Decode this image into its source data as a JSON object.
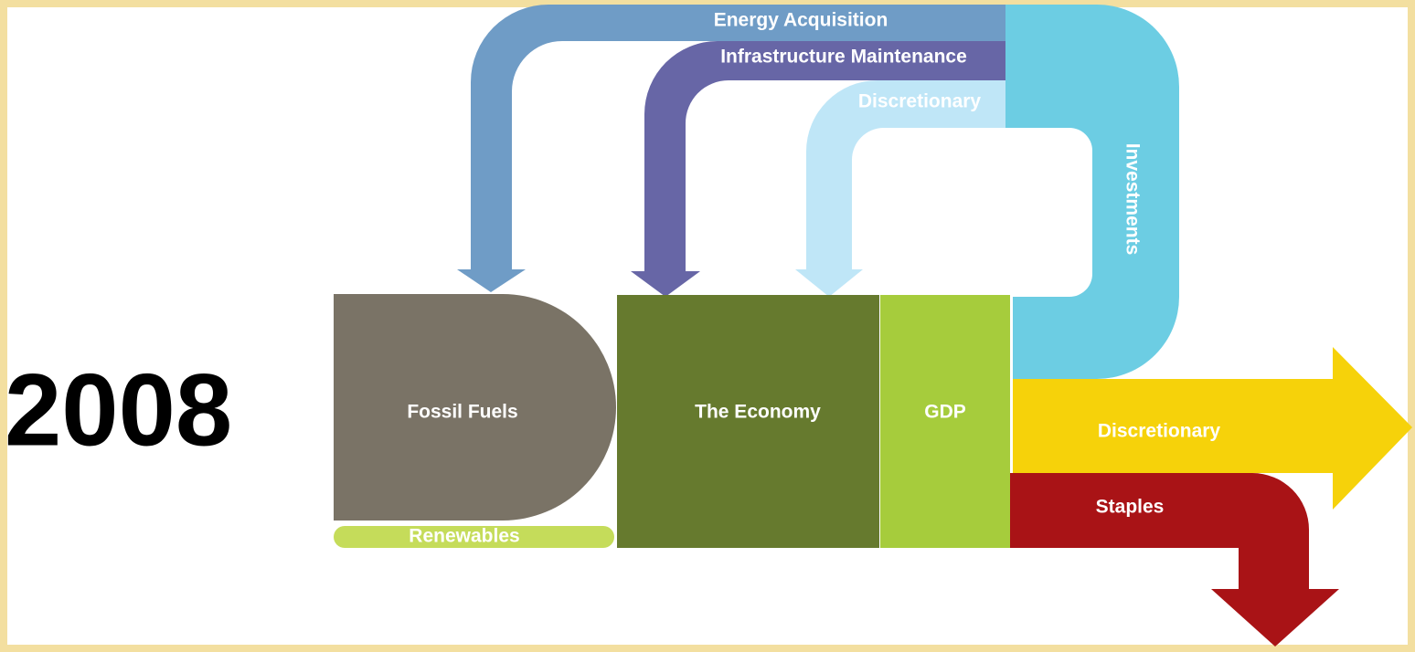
{
  "year": "2008",
  "nodes": [
    {
      "label": "Fossil Fuels"
    },
    {
      "label": "Renewables"
    },
    {
      "label": "The Economy"
    },
    {
      "label": "GDP"
    }
  ],
  "flows": [
    {
      "label": "Energy Acquisition"
    },
    {
      "label": "Infrastructure Maintenance"
    },
    {
      "label": "Discretionary"
    },
    {
      "label": "Investments"
    },
    {
      "label": "Discretionary"
    },
    {
      "label": "Staples"
    }
  ]
}
